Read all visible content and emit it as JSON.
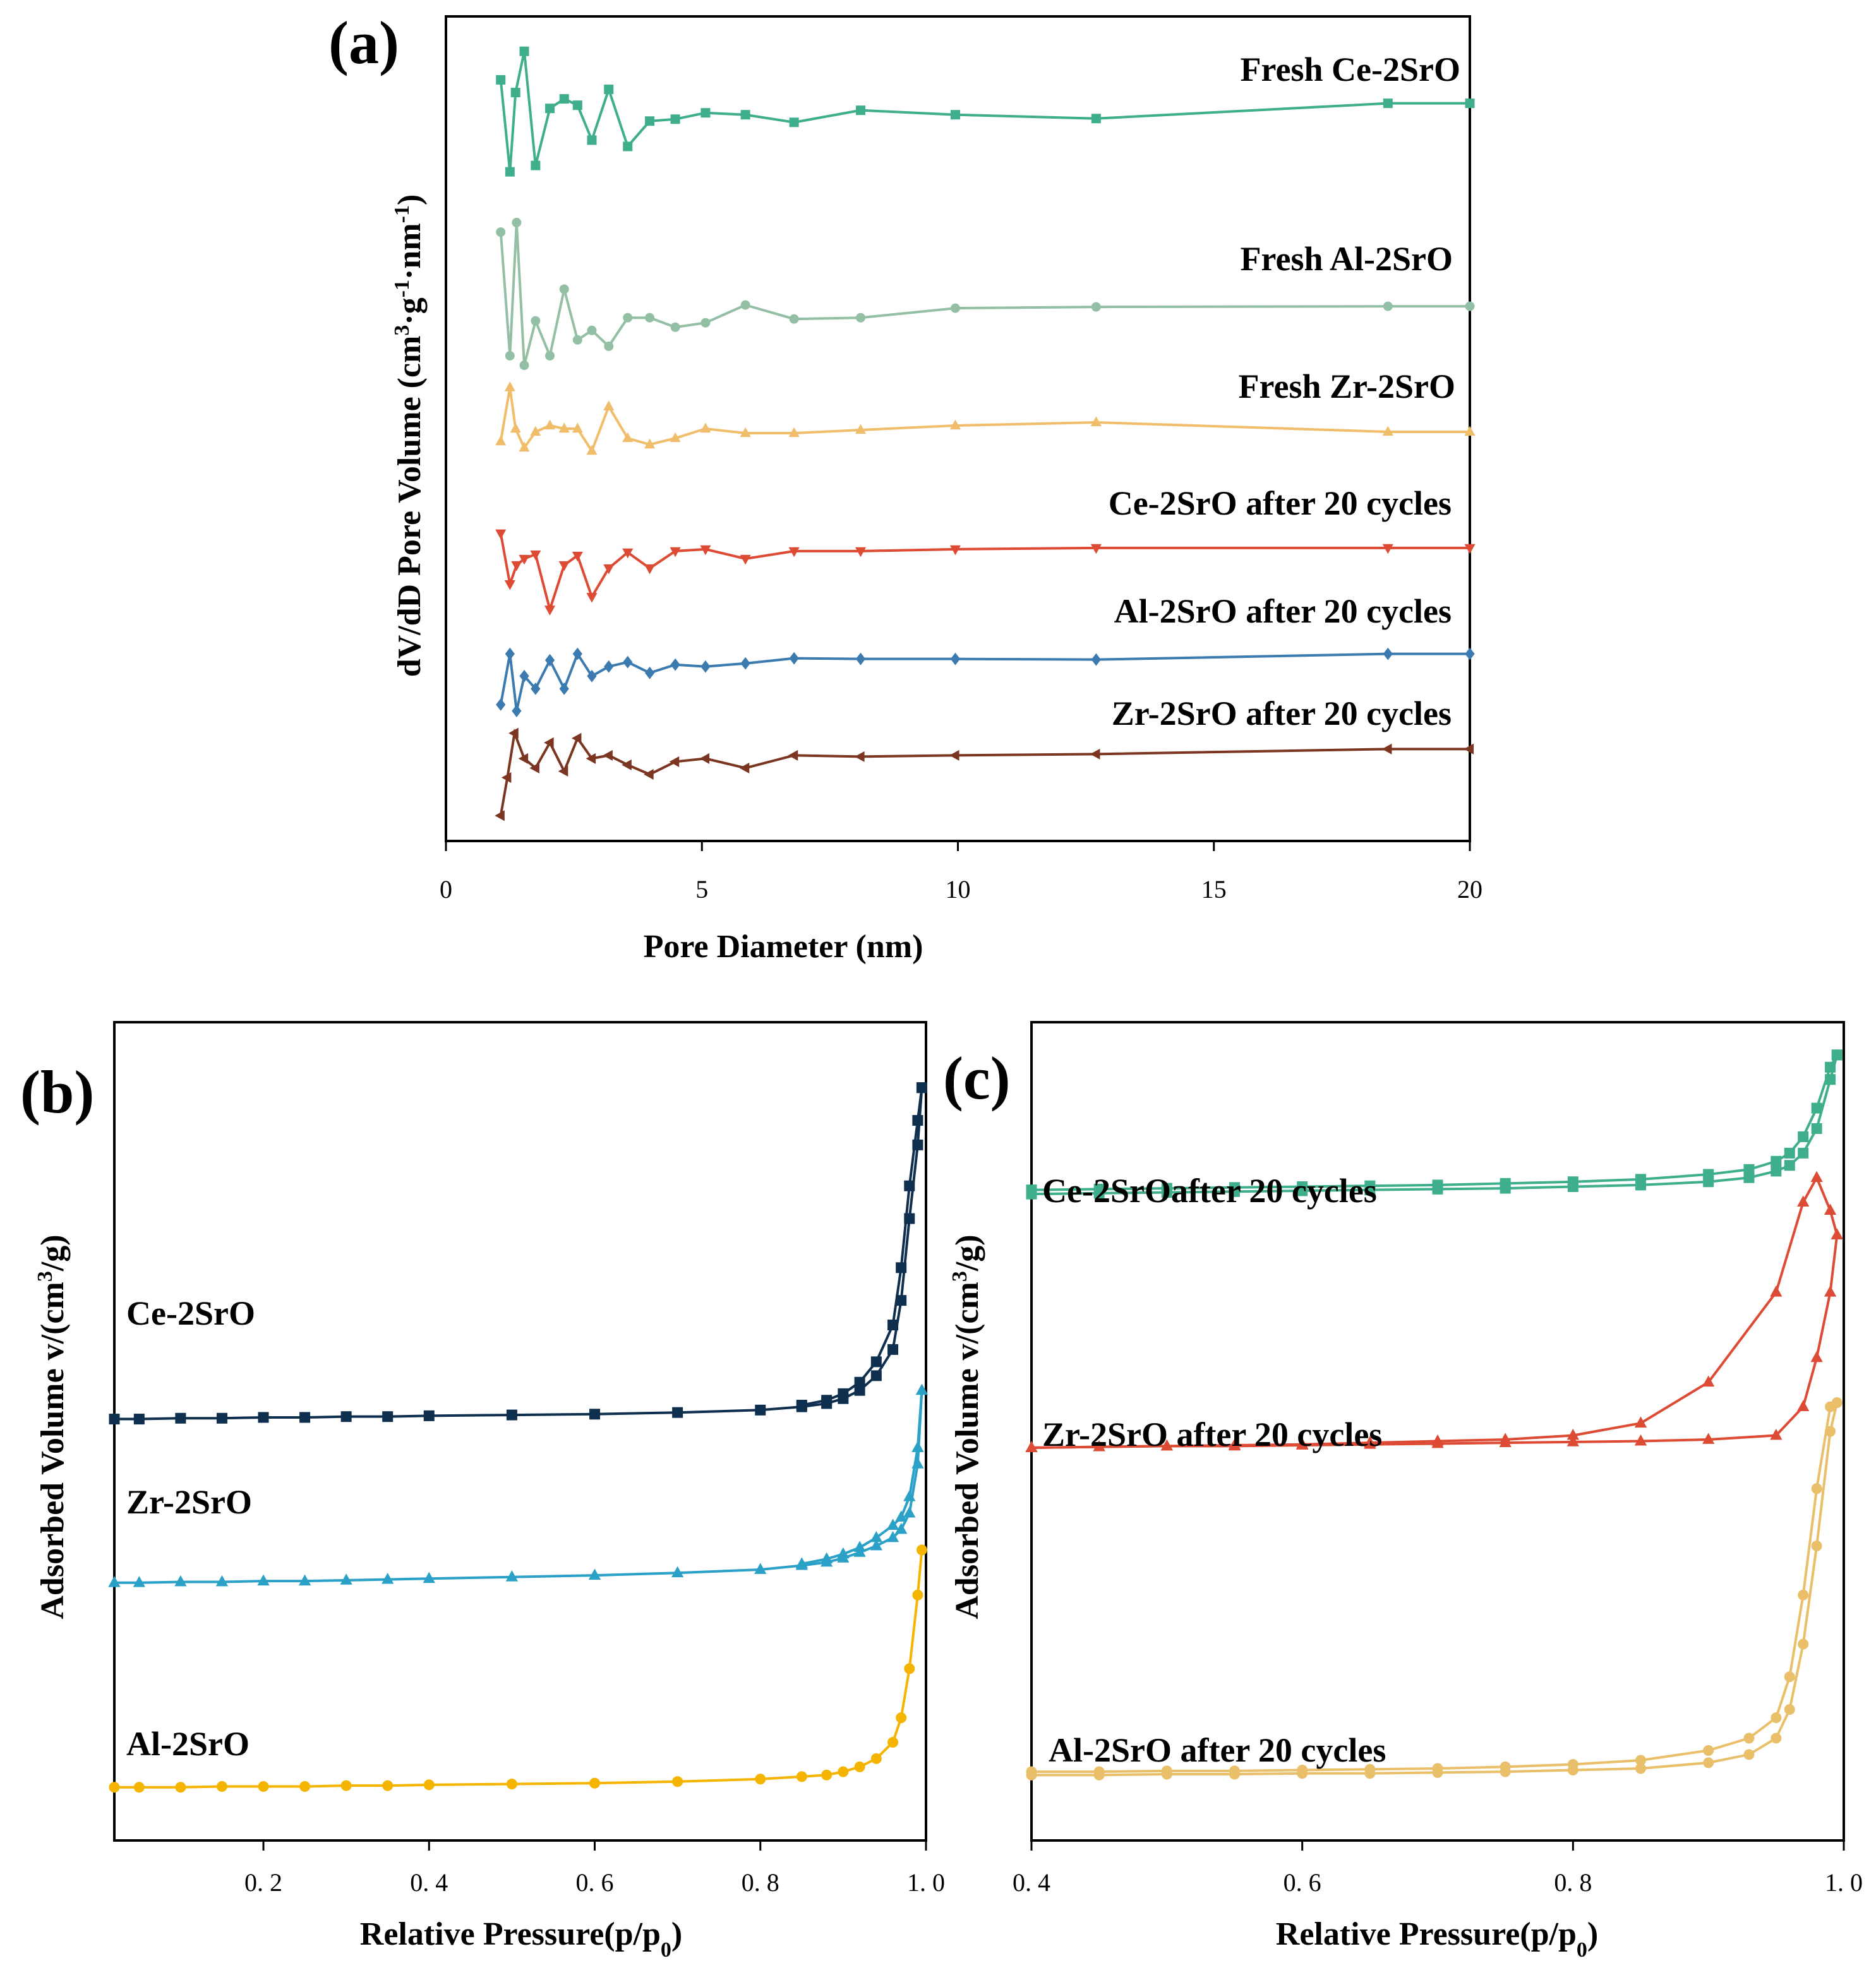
{
  "colors": {
    "ce": "#3fae8c",
    "al": "#93c0a4",
    "zr": "#f0bd6a",
    "ce_cyc": "#dd4b34",
    "al_cyc": "#3b7bb0",
    "zr_cyc": "#7b3520",
    "ce_b": "#0f2f4f",
    "zr_b": "#2ba1c7",
    "al_b": "#f4b400",
    "ce_c": "#3fae8c",
    "zr_c": "#dd4b34",
    "al_c": "#e9bf6a"
  },
  "chart_data": [
    {
      "panel": "(a)",
      "type": "line",
      "xlabel": "Pore Diameter (nm)",
      "ylabel": "dV/dD Pore Volume (cm3·g-1·nm-1)",
      "ylabel_parts": [
        "dV/dD Pore Volume (cm",
        "3",
        "·g",
        "-1",
        "·nm",
        "-1",
        ")"
      ],
      "xlim": [
        0,
        20
      ],
      "ylim": [
        0,
        13
      ],
      "xticks": [
        0,
        5,
        10,
        15,
        20
      ],
      "y_tick_labels": "none",
      "grid": false,
      "series": [
        {
          "name": "Fresh Ce-2SrO",
          "color_key": "ce",
          "marker": "square",
          "x": [
            1.07,
            1.25,
            1.36,
            1.53,
            1.75,
            2.03,
            2.31,
            2.57,
            2.85,
            3.18,
            3.55,
            3.98,
            4.48,
            5.07,
            5.85,
            6.8,
            8.1,
            9.95,
            12.7,
            18.4,
            20
          ],
          "y": [
            12.0,
            10.55,
            11.8,
            12.45,
            10.65,
            11.55,
            11.7,
            11.6,
            11.05,
            11.85,
            10.95,
            11.35,
            11.38,
            11.48,
            11.45,
            11.33,
            11.52,
            11.45,
            11.39,
            11.63,
            11.63
          ]
        },
        {
          "name": "Fresh Al-2SrO",
          "color_key": "al",
          "marker": "circle",
          "x": [
            1.07,
            1.25,
            1.38,
            1.53,
            1.75,
            2.03,
            2.31,
            2.57,
            2.85,
            3.18,
            3.55,
            3.98,
            4.48,
            5.07,
            5.85,
            6.8,
            8.1,
            9.95,
            12.7,
            18.4,
            20
          ],
          "y": [
            9.6,
            7.65,
            9.75,
            7.5,
            8.2,
            7.65,
            8.7,
            7.9,
            8.05,
            7.8,
            8.25,
            8.25,
            8.1,
            8.17,
            8.45,
            8.23,
            8.25,
            8.4,
            8.42,
            8.43,
            8.43
          ],
          "label_xy": [
            15.95,
            8.85
          ]
        },
        {
          "name": "Fresh Zr-2SrO",
          "color_key": "zr",
          "marker": "triangle-up",
          "x": [
            1.07,
            1.25,
            1.36,
            1.53,
            1.75,
            2.03,
            2.31,
            2.57,
            2.85,
            3.18,
            3.55,
            3.98,
            4.48,
            5.07,
            5.85,
            6.8,
            8.1,
            9.95,
            12.7,
            18.4,
            20
          ],
          "y": [
            6.3,
            7.15,
            6.5,
            6.2,
            6.45,
            6.55,
            6.5,
            6.5,
            6.15,
            6.85,
            6.35,
            6.25,
            6.35,
            6.5,
            6.43,
            6.43,
            6.48,
            6.55,
            6.6,
            6.45,
            6.45
          ]
        },
        {
          "name": "Ce-2SrO after 20 cycles",
          "color_key": "ce_cyc",
          "marker": "triangle-down",
          "x": [
            1.07,
            1.25,
            1.38,
            1.53,
            1.75,
            2.03,
            2.31,
            2.57,
            2.85,
            3.18,
            3.55,
            3.98,
            4.48,
            5.07,
            5.85,
            6.8,
            8.1,
            9.95,
            12.7,
            18.4,
            20
          ],
          "y": [
            4.85,
            4.05,
            4.35,
            4.45,
            4.52,
            3.65,
            4.35,
            4.5,
            3.85,
            4.3,
            4.55,
            4.3,
            4.57,
            4.6,
            4.45,
            4.57,
            4.57,
            4.6,
            4.62,
            4.62,
            4.62
          ]
        },
        {
          "name": "Al-2SrO after 20 cycles",
          "color_key": "al_cyc",
          "marker": "diamond",
          "x": [
            1.07,
            1.25,
            1.38,
            1.53,
            1.75,
            2.03,
            2.31,
            2.57,
            2.85,
            3.18,
            3.55,
            3.98,
            4.48,
            5.07,
            5.85,
            6.8,
            8.1,
            9.95,
            12.7,
            18.4,
            20
          ],
          "y": [
            2.15,
            2.95,
            2.05,
            2.6,
            2.4,
            2.85,
            2.4,
            2.95,
            2.6,
            2.75,
            2.82,
            2.65,
            2.78,
            2.75,
            2.8,
            2.88,
            2.87,
            2.87,
            2.86,
            2.95,
            2.95
          ]
        },
        {
          "name": "Zr-2SrO after 20 cycles",
          "color_key": "zr_cyc",
          "marker": "triangle-left",
          "x": [
            1.07,
            1.2,
            1.34,
            1.53,
            1.75,
            2.03,
            2.31,
            2.57,
            2.85,
            3.18,
            3.55,
            3.98,
            4.48,
            5.07,
            5.85,
            6.8,
            8.1,
            9.95,
            12.7,
            18.4,
            20
          ],
          "y": [
            0.4,
            1.0,
            1.7,
            1.3,
            1.15,
            1.55,
            1.1,
            1.62,
            1.3,
            1.35,
            1.2,
            1.05,
            1.25,
            1.3,
            1.15,
            1.35,
            1.33,
            1.35,
            1.37,
            1.45,
            1.45
          ]
        }
      ]
    },
    {
      "panel": "(b)",
      "type": "line",
      "xlabel": "Relative Pressure(p/p0)",
      "xlabel_parts": [
        "Relative Pressure(p/p",
        "0",
        ")"
      ],
      "ylabel": "Adsorbed Volume v/(cm3/g)",
      "ylabel_parts": [
        "Adsorbed Volume v/(cm",
        "3",
        "/g)"
      ],
      "xlim": [
        0.02,
        1.0
      ],
      "ylim": [
        0,
        10
      ],
      "xticks": [
        0.2,
        0.4,
        0.6,
        0.8,
        1.0
      ],
      "xtick_labels": [
        "0. 2",
        "0. 4",
        "0. 6",
        "0. 8",
        "1. 0"
      ],
      "y_tick_labels": "none",
      "grid": false,
      "series": [
        {
          "name": "Ce-2SrO",
          "color_key": "ce_b",
          "marker": "square",
          "x": [
            0.02,
            0.05,
            0.1,
            0.15,
            0.2,
            0.25,
            0.3,
            0.35,
            0.4,
            0.5,
            0.6,
            0.7,
            0.8,
            0.85,
            0.88,
            0.9,
            0.92,
            0.94,
            0.96,
            0.97,
            0.98,
            0.99,
            0.995
          ],
          "y": [
            5.15,
            5.15,
            5.16,
            5.16,
            5.17,
            5.17,
            5.18,
            5.18,
            5.19,
            5.2,
            5.21,
            5.23,
            5.26,
            5.3,
            5.34,
            5.4,
            5.5,
            5.68,
            6.0,
            6.6,
            7.6,
            8.5,
            9.2
          ],
          "desorption_y": [
            null,
            null,
            null,
            null,
            null,
            null,
            null,
            null,
            null,
            null,
            null,
            null,
            null,
            5.32,
            5.38,
            5.46,
            5.6,
            5.85,
            6.3,
            7.0,
            8.0,
            8.8,
            9.2
          ]
        },
        {
          "name": "Zr-2SrO",
          "color_key": "zr_b",
          "marker": "triangle-up",
          "x": [
            0.02,
            0.05,
            0.1,
            0.15,
            0.2,
            0.25,
            0.3,
            0.35,
            0.4,
            0.5,
            0.6,
            0.7,
            0.8,
            0.85,
            0.88,
            0.9,
            0.92,
            0.94,
            0.96,
            0.97,
            0.98,
            0.99,
            0.995
          ],
          "y": [
            3.15,
            3.15,
            3.16,
            3.16,
            3.17,
            3.17,
            3.18,
            3.19,
            3.2,
            3.22,
            3.24,
            3.27,
            3.31,
            3.36,
            3.4,
            3.45,
            3.52,
            3.6,
            3.7,
            3.8,
            4.0,
            4.6,
            5.5
          ],
          "desorption_y": [
            null,
            null,
            null,
            null,
            null,
            null,
            null,
            null,
            null,
            null,
            null,
            null,
            null,
            3.38,
            3.44,
            3.5,
            3.58,
            3.7,
            3.85,
            3.95,
            4.2,
            4.8,
            5.5
          ]
        },
        {
          "name": "Al-2SrO",
          "color_key": "al_b",
          "marker": "circle",
          "x": [
            0.02,
            0.05,
            0.1,
            0.15,
            0.2,
            0.25,
            0.3,
            0.35,
            0.4,
            0.5,
            0.6,
            0.7,
            0.8,
            0.85,
            0.88,
            0.9,
            0.92,
            0.94,
            0.96,
            0.97,
            0.98,
            0.99,
            0.995
          ],
          "y": [
            0.65,
            0.65,
            0.65,
            0.66,
            0.66,
            0.66,
            0.67,
            0.67,
            0.68,
            0.69,
            0.7,
            0.72,
            0.75,
            0.78,
            0.8,
            0.84,
            0.9,
            1.0,
            1.2,
            1.5,
            2.1,
            3.0,
            3.55
          ]
        }
      ]
    },
    {
      "panel": "(c)",
      "type": "line",
      "xlabel": "Relative Pressure(p/p0)",
      "xlabel_parts": [
        "Relative Pressure(p/p",
        "0",
        ")"
      ],
      "ylabel": "Adsorbed Volume v/(cm3/g)",
      "ylabel_parts": [
        "Adsorbed Volume v/(cm",
        "3",
        "/g)"
      ],
      "xlim": [
        0.4,
        1.0
      ],
      "ylim": [
        0,
        10
      ],
      "xticks": [
        0.4,
        0.6,
        0.8,
        1.0
      ],
      "xtick_labels": [
        "0. 4",
        "0. 6",
        "0. 8",
        "1. 0"
      ],
      "y_tick_labels": "none",
      "grid": false,
      "series": [
        {
          "name": "Ce-2SrOafter 20 cycles",
          "color_key": "ce_c",
          "marker": "square",
          "x": [
            0.4,
            0.45,
            0.5,
            0.55,
            0.6,
            0.65,
            0.7,
            0.75,
            0.8,
            0.85,
            0.9,
            0.93,
            0.95,
            0.96,
            0.97,
            0.98,
            0.99,
            0.995
          ],
          "y": [
            7.9,
            7.91,
            7.92,
            7.93,
            7.94,
            7.95,
            7.96,
            7.97,
            7.99,
            8.01,
            8.05,
            8.1,
            8.18,
            8.25,
            8.4,
            8.7,
            9.3,
            9.6
          ],
          "desorption_y": [
            7.95,
            7.96,
            7.97,
            7.98,
            7.99,
            8.0,
            8.01,
            8.03,
            8.05,
            8.08,
            8.14,
            8.2,
            8.3,
            8.4,
            8.6,
            8.95,
            9.45,
            9.6
          ]
        },
        {
          "name": "Zr-2SrO after 20 cycles",
          "color_key": "zr_c",
          "marker": "triangle-up",
          "x": [
            0.4,
            0.45,
            0.5,
            0.55,
            0.6,
            0.65,
            0.7,
            0.75,
            0.8,
            0.85,
            0.9,
            0.95,
            0.97,
            0.98,
            0.99,
            0.995
          ],
          "y": [
            4.8,
            4.81,
            4.82,
            4.82,
            4.83,
            4.84,
            4.85,
            4.86,
            4.87,
            4.88,
            4.9,
            4.95,
            5.3,
            5.9,
            6.7,
            7.4
          ],
          "desorption_y": [
            4.8,
            4.81,
            4.82,
            4.83,
            4.84,
            4.86,
            4.88,
            4.9,
            4.95,
            5.1,
            5.6,
            6.7,
            7.8,
            8.1,
            7.7,
            7.4
          ]
        },
        {
          "name": "Al-2SrO after 20 cycles",
          "color_key": "al_c",
          "marker": "circle",
          "x": [
            0.4,
            0.45,
            0.5,
            0.55,
            0.6,
            0.65,
            0.7,
            0.75,
            0.8,
            0.85,
            0.9,
            0.93,
            0.95,
            0.96,
            0.97,
            0.98,
            0.99,
            0.995
          ],
          "y": [
            0.8,
            0.8,
            0.81,
            0.81,
            0.82,
            0.82,
            0.83,
            0.84,
            0.86,
            0.88,
            0.95,
            1.05,
            1.25,
            1.6,
            2.4,
            3.6,
            5.0,
            5.35
          ],
          "desorption_y": [
            0.84,
            0.84,
            0.85,
            0.85,
            0.86,
            0.87,
            0.88,
            0.9,
            0.93,
            0.98,
            1.1,
            1.25,
            1.5,
            2.0,
            3.0,
            4.3,
            5.3,
            5.35
          ]
        }
      ]
    }
  ]
}
